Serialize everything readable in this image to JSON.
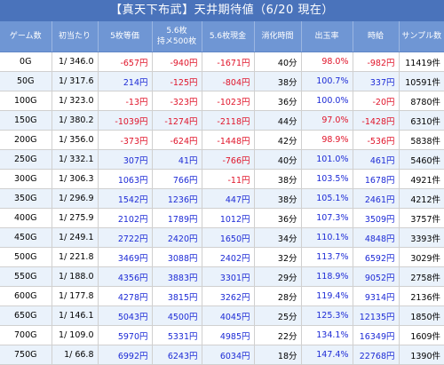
{
  "title": "【真天下布武】天井期待値（6/20 現在）",
  "columns": [
    "ゲーム数",
    "初当たり",
    "5枚等価",
    "5.6枚\n持メ500枚",
    "5.6枚現金",
    "消化時間",
    "出玉率",
    "時給",
    "サンプル数"
  ],
  "rows": [
    {
      "game": "0G",
      "hit": "1/ 346.0",
      "eq5": "-657円",
      "m56": "-940円",
      "c56": "-1671円",
      "time": "40分",
      "rate": "98.0%",
      "hourly": "-982円",
      "sample": "11419件"
    },
    {
      "game": "50G",
      "hit": "1/ 317.6",
      "eq5": "214円",
      "m56": "-125円",
      "c56": "-804円",
      "time": "38分",
      "rate": "100.7%",
      "hourly": "337円",
      "sample": "10591件"
    },
    {
      "game": "100G",
      "hit": "1/ 323.0",
      "eq5": "-13円",
      "m56": "-323円",
      "c56": "-1023円",
      "time": "36分",
      "rate": "100.0%",
      "hourly": "-20円",
      "sample": "8780件"
    },
    {
      "game": "150G",
      "hit": "1/ 380.2",
      "eq5": "-1039円",
      "m56": "-1274円",
      "c56": "-2118円",
      "time": "44分",
      "rate": "97.0%",
      "hourly": "-1428円",
      "sample": "6310件"
    },
    {
      "game": "200G",
      "hit": "1/ 356.0",
      "eq5": "-373円",
      "m56": "-624円",
      "c56": "-1448円",
      "time": "42分",
      "rate": "98.9%",
      "hourly": "-536円",
      "sample": "5838件"
    },
    {
      "game": "250G",
      "hit": "1/ 332.1",
      "eq5": "307円",
      "m56": "41円",
      "c56": "-766円",
      "time": "40分",
      "rate": "101.0%",
      "hourly": "461円",
      "sample": "5460件"
    },
    {
      "game": "300G",
      "hit": "1/ 306.3",
      "eq5": "1063円",
      "m56": "766円",
      "c56": "-11円",
      "time": "38分",
      "rate": "103.5%",
      "hourly": "1678円",
      "sample": "4921件"
    },
    {
      "game": "350G",
      "hit": "1/ 296.9",
      "eq5": "1542円",
      "m56": "1236円",
      "c56": "447円",
      "time": "38分",
      "rate": "105.1%",
      "hourly": "2461円",
      "sample": "4212件"
    },
    {
      "game": "400G",
      "hit": "1/ 275.9",
      "eq5": "2102円",
      "m56": "1789円",
      "c56": "1012円",
      "time": "36分",
      "rate": "107.3%",
      "hourly": "3509円",
      "sample": "3757件"
    },
    {
      "game": "450G",
      "hit": "1/ 249.1",
      "eq5": "2722円",
      "m56": "2420円",
      "c56": "1650円",
      "time": "34分",
      "rate": "110.1%",
      "hourly": "4848円",
      "sample": "3393件"
    },
    {
      "game": "500G",
      "hit": "1/ 221.8",
      "eq5": "3469円",
      "m56": "3088円",
      "c56": "2402円",
      "time": "32分",
      "rate": "113.7%",
      "hourly": "6592円",
      "sample": "3029件"
    },
    {
      "game": "550G",
      "hit": "1/ 188.0",
      "eq5": "4356円",
      "m56": "3883円",
      "c56": "3301円",
      "time": "29分",
      "rate": "118.9%",
      "hourly": "9052円",
      "sample": "2758件"
    },
    {
      "game": "600G",
      "hit": "1/ 177.8",
      "eq5": "4278円",
      "m56": "3815円",
      "c56": "3262円",
      "time": "28分",
      "rate": "119.4%",
      "hourly": "9314円",
      "sample": "2136件"
    },
    {
      "game": "650G",
      "hit": "1/ 146.1",
      "eq5": "5043円",
      "m56": "4500円",
      "c56": "4045円",
      "time": "25分",
      "rate": "125.3%",
      "hourly": "12135円",
      "sample": "1850件"
    },
    {
      "game": "700G",
      "hit": "1/ 109.0",
      "eq5": "5970円",
      "m56": "5331円",
      "c56": "4985円",
      "time": "22分",
      "rate": "134.1%",
      "hourly": "16349円",
      "sample": "1609件"
    },
    {
      "game": "750G",
      "hit": "1/ 66.8",
      "eq5": "6992円",
      "m56": "6243円",
      "c56": "6034円",
      "time": "18分",
      "rate": "147.4%",
      "hourly": "22768円",
      "sample": "1390件"
    }
  ],
  "colors": {
    "title_bg": "#4a73bb",
    "header_bg": "#6f96d4",
    "row_alt": "#eaf2fb",
    "negative": "#e0142a",
    "positive": "#1d2bd6"
  }
}
